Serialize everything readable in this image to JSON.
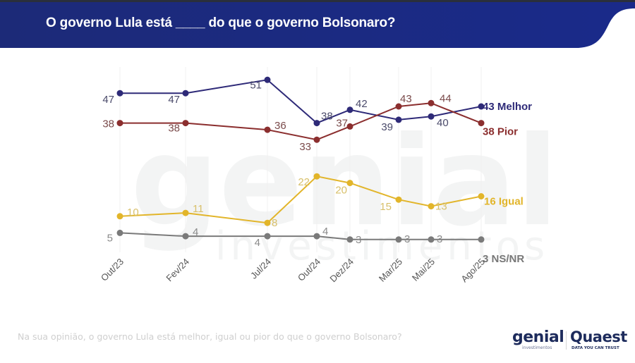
{
  "header": {
    "title": "O governo Lula está ____ do que o governo Bolsonaro?"
  },
  "footer": {
    "question": "Na sua opinião, o governo Lula está melhor, igual ou pior do que o governo Bolsonaro?"
  },
  "logos": {
    "genial": "genial",
    "genial_sub": "investimentos",
    "quaest": "Quaest",
    "quaest_sub": "DATA YOU CAN TRUST"
  },
  "watermark": {
    "main": "genial",
    "sub": "investimentos"
  },
  "chart_data": {
    "type": "line",
    "title": "O governo Lula está ____ do que o governo Bolsonaro?",
    "xlabel": "",
    "ylabel": "",
    "categories": [
      "Out/23",
      "Fev/24",
      "Jul/24",
      "Out/24",
      "Dez/24",
      "Mar/25",
      "Mai/25",
      "Ago/25"
    ],
    "x_spacing_months": [
      0,
      4,
      9,
      12,
      14,
      17,
      19,
      22
    ],
    "grid": "vertical",
    "legend": "end-of-line labels",
    "series": [
      {
        "name": "Melhor",
        "end_label": "43 Melhor",
        "color": "#2e2a78",
        "values": [
          47,
          47,
          51,
          38,
          42,
          39,
          40,
          43
        ]
      },
      {
        "name": "Pior",
        "end_label": "38 Pior",
        "color": "#8b2e2e",
        "values": [
          38,
          38,
          36,
          33,
          37,
          43,
          44,
          38
        ]
      },
      {
        "name": "Igual",
        "end_label": "16 Igual",
        "color": "#e2b52a",
        "values": [
          10,
          11,
          8,
          22,
          20,
          15,
          13,
          16
        ]
      },
      {
        "name": "NS/NR",
        "end_label": "3 NS/NR",
        "color": "#7a7a7a",
        "values": [
          5,
          4,
          4,
          4,
          3,
          3,
          3,
          3
        ]
      }
    ],
    "label_colors": {
      "Melhor": "#4a4a6a",
      "Pior": "#7a4a4a",
      "Igual": "#d8c06a",
      "NS/NR": "#8a8a8a"
    }
  }
}
